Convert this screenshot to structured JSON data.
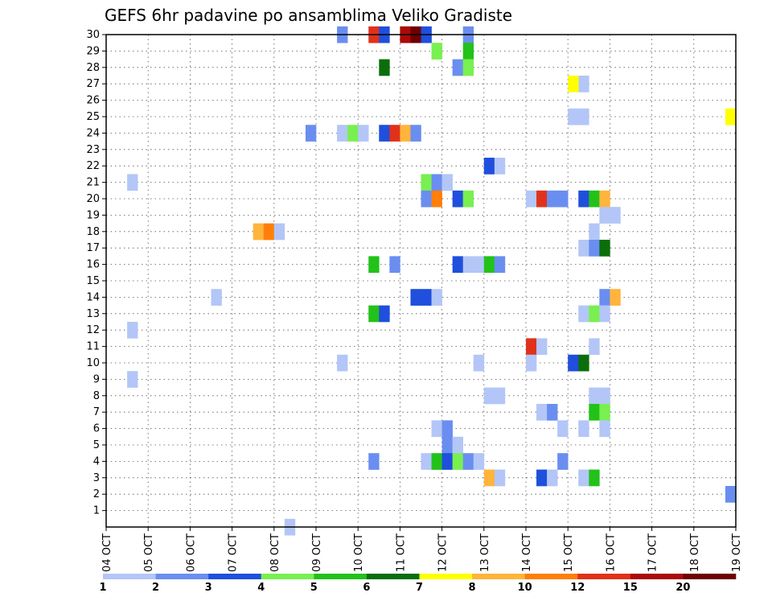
{
  "chart_data": {
    "type": "heatmap",
    "title": "GEFS 6hr padavine po ansamblima Veliko Gradiste",
    "y_ticks": [
      "1",
      "2",
      "3",
      "4",
      "5",
      "6",
      "7",
      "8",
      "9",
      "10",
      "11",
      "12",
      "13",
      "14",
      "15",
      "16",
      "17",
      "18",
      "19",
      "20",
      "21",
      "22",
      "23",
      "24",
      "25",
      "26",
      "27",
      "28",
      "29",
      "30"
    ],
    "x_ticks": [
      "04 OCT",
      "05 OCT",
      "06 OCT",
      "07 OCT",
      "08 OCT",
      "09 OCT",
      "10 OCT",
      "11 OCT",
      "12 OCT",
      "13 OCT",
      "14 OCT",
      "15 OCT",
      "16 OCT",
      "17 OCT",
      "18 OCT",
      "19 OCT"
    ],
    "x_range": [
      0,
      60
    ],
    "y_range": [
      0,
      30
    ],
    "grid": true,
    "colorbar": {
      "labels": [
        "1",
        "2",
        "3",
        "4",
        "5",
        "6",
        "7",
        "8",
        "10",
        "12",
        "15",
        "20"
      ],
      "colors": [
        "#b3c6f7",
        "#6a8ef0",
        "#1f4fdc",
        "#78f050",
        "#22c21a",
        "#0b6e0b",
        "#ffff00",
        "#ffb43c",
        "#ff7f0a",
        "#e0321a",
        "#aa0a0a",
        "#6e0000"
      ]
    },
    "cells": [
      [
        22,
        30,
        1
      ],
      [
        25,
        30,
        9
      ],
      [
        26,
        30,
        2
      ],
      [
        28,
        30,
        3
      ],
      [
        28,
        30,
        10
      ],
      [
        29,
        30,
        11
      ],
      [
        30,
        30,
        2
      ],
      [
        34,
        30,
        1
      ],
      [
        31,
        29,
        3
      ],
      [
        34,
        29,
        4
      ],
      [
        26,
        28,
        5
      ],
      [
        33,
        28,
        1
      ],
      [
        34,
        28,
        3
      ],
      [
        45,
        27,
        0
      ],
      [
        44,
        27,
        6
      ],
      [
        44,
        25,
        0
      ],
      [
        45,
        25,
        0
      ],
      [
        59,
        25,
        6
      ],
      [
        19,
        24,
        1
      ],
      [
        22,
        24,
        0
      ],
      [
        23,
        24,
        3
      ],
      [
        24,
        24,
        0
      ],
      [
        26,
        24,
        2
      ],
      [
        27,
        24,
        9
      ],
      [
        28,
        24,
        7
      ],
      [
        29,
        24,
        1
      ],
      [
        36,
        22,
        2
      ],
      [
        37,
        22,
        0
      ],
      [
        2,
        21,
        0
      ],
      [
        30,
        21,
        3
      ],
      [
        31,
        21,
        1
      ],
      [
        32,
        21,
        0
      ],
      [
        30,
        20,
        1
      ],
      [
        31,
        20,
        8
      ],
      [
        33,
        20,
        2
      ],
      [
        34,
        20,
        3
      ],
      [
        40,
        20,
        0
      ],
      [
        41,
        20,
        9
      ],
      [
        42,
        20,
        1
      ],
      [
        43,
        20,
        1
      ],
      [
        45,
        20,
        2
      ],
      [
        46,
        20,
        4
      ],
      [
        47,
        20,
        7
      ],
      [
        47,
        19,
        0
      ],
      [
        48,
        19,
        0
      ],
      [
        14,
        18,
        7
      ],
      [
        15,
        18,
        8
      ],
      [
        16,
        18,
        0
      ],
      [
        46,
        18,
        0
      ],
      [
        45,
        17,
        0
      ],
      [
        46,
        17,
        1
      ],
      [
        47,
        17,
        5
      ],
      [
        25,
        16,
        4
      ],
      [
        27,
        16,
        1
      ],
      [
        33,
        16,
        2
      ],
      [
        34,
        16,
        0
      ],
      [
        35,
        16,
        0
      ],
      [
        36,
        16,
        4
      ],
      [
        37,
        16,
        1
      ],
      [
        29,
        14,
        2
      ],
      [
        30,
        14,
        2
      ],
      [
        31,
        14,
        0
      ],
      [
        47,
        14,
        1
      ],
      [
        48,
        14,
        7
      ],
      [
        10,
        14,
        0
      ],
      [
        25,
        13,
        4
      ],
      [
        26,
        13,
        2
      ],
      [
        45,
        13,
        0
      ],
      [
        46,
        13,
        3
      ],
      [
        47,
        13,
        0
      ],
      [
        2,
        12,
        0
      ],
      [
        40,
        11,
        9
      ],
      [
        41,
        11,
        0
      ],
      [
        46,
        11,
        0
      ],
      [
        22,
        10,
        0
      ],
      [
        35,
        10,
        0
      ],
      [
        40,
        10,
        0
      ],
      [
        44,
        10,
        2
      ],
      [
        45,
        10,
        5
      ],
      [
        2,
        9,
        0
      ],
      [
        36,
        8,
        0
      ],
      [
        37,
        8,
        0
      ],
      [
        46,
        8,
        0
      ],
      [
        47,
        8,
        0
      ],
      [
        41,
        7,
        0
      ],
      [
        42,
        7,
        1
      ],
      [
        46,
        7,
        4
      ],
      [
        47,
        7,
        3
      ],
      [
        31,
        6,
        0
      ],
      [
        32,
        6,
        1
      ],
      [
        43,
        6,
        0
      ],
      [
        45,
        6,
        0
      ],
      [
        47,
        6,
        0
      ],
      [
        32,
        5,
        1
      ],
      [
        33,
        5,
        0
      ],
      [
        25,
        4,
        1
      ],
      [
        30,
        4,
        0
      ],
      [
        31,
        4,
        4
      ],
      [
        32,
        4,
        2
      ],
      [
        33,
        4,
        3
      ],
      [
        34,
        4,
        1
      ],
      [
        35,
        4,
        0
      ],
      [
        43,
        4,
        1
      ],
      [
        36,
        3,
        7
      ],
      [
        37,
        3,
        0
      ],
      [
        41,
        3,
        2
      ],
      [
        42,
        3,
        0
      ],
      [
        45,
        3,
        0
      ],
      [
        46,
        3,
        4
      ],
      [
        59,
        2,
        1
      ],
      [
        17,
        0,
        0
      ]
    ]
  }
}
